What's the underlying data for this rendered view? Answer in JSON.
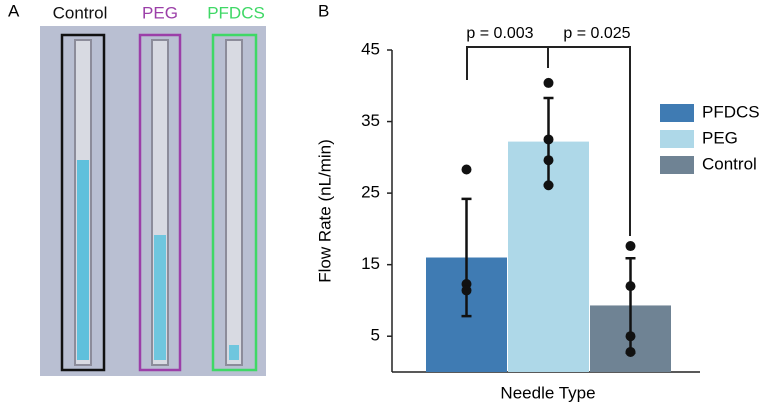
{
  "panel_a": {
    "label": "A",
    "labels": [
      {
        "text": "Control",
        "color": "#111111"
      },
      {
        "text": "PEG",
        "color": "#9b3fa8"
      },
      {
        "text": "PFDCS",
        "color": "#3fd866"
      }
    ]
  },
  "chart_data": {
    "type": "bar",
    "panel_label": "B",
    "ylabel": "Flow Rate (nL/min)",
    "xlabel": "Needle Type",
    "categories": [
      null
    ],
    "series": [
      {
        "name": "PFDCS",
        "color": "#3f7bb3",
        "values": [
          16
        ],
        "errors": [
          8.2
        ],
        "points": [
          28.3,
          12.3,
          11.4
        ]
      },
      {
        "name": "PEG",
        "color": "#aed8e8",
        "values": [
          32.2
        ],
        "errors": [
          6.1
        ],
        "points": [
          40.4,
          32.5,
          29.6,
          26.1
        ]
      },
      {
        "name": "Control",
        "color": "#6f8394",
        "values": [
          9.3
        ],
        "errors": [
          6.6
        ],
        "points": [
          17.6,
          12,
          5,
          2.8
        ]
      }
    ],
    "annotations": [
      "p = 0.003",
      "p = 0.025"
    ],
    "ylim": [
      0,
      45
    ],
    "yticks": [
      5,
      15,
      25,
      35,
      45
    ],
    "legend": "right"
  }
}
